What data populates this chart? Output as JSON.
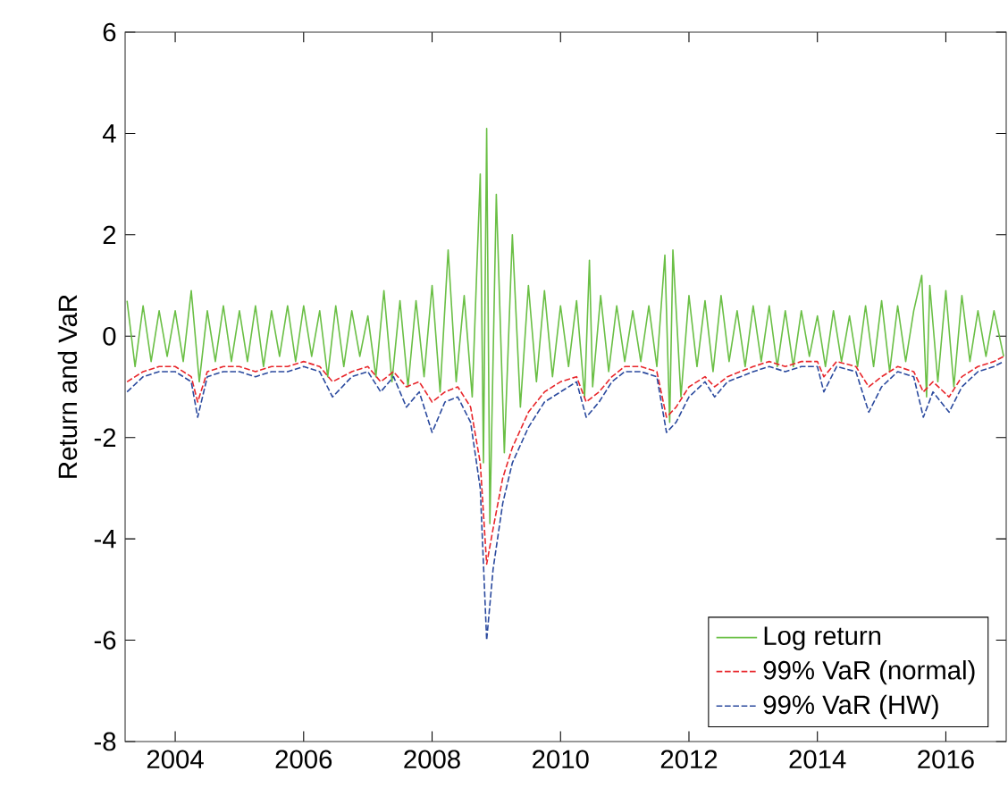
{
  "chart_data": {
    "type": "line",
    "ylabel": "Return and VaR",
    "xlim": [
      2003.22,
      2016.94
    ],
    "ylim": [
      -8,
      6
    ],
    "xticks": [
      2004,
      2006,
      2008,
      2010,
      2012,
      2014,
      2016
    ],
    "yticks": [
      -8,
      -6,
      -4,
      -2,
      0,
      2,
      4,
      6
    ],
    "legend": "bottom right",
    "grid": false,
    "series": [
      {
        "name": "Log return",
        "color": "#6abf45",
        "line_style": "solid",
        "x": [
          2003.25,
          2003.375,
          2003.5,
          2003.625,
          2003.75,
          2003.875,
          2004.0,
          2004.125,
          2004.25,
          2004.375,
          2004.5,
          2004.625,
          2004.75,
          2004.875,
          2005.0,
          2005.125,
          2005.25,
          2005.375,
          2005.5,
          2005.625,
          2005.75,
          2005.875,
          2006.0,
          2006.125,
          2006.25,
          2006.375,
          2006.5,
          2006.625,
          2006.75,
          2006.875,
          2007.0,
          2007.125,
          2007.25,
          2007.375,
          2007.5,
          2007.625,
          2007.75,
          2007.875,
          2008.0,
          2008.125,
          2008.25,
          2008.375,
          2008.5,
          2008.625,
          2008.75,
          2008.8,
          2008.85,
          2008.9,
          2009.0,
          2009.125,
          2009.25,
          2009.375,
          2009.5,
          2009.625,
          2009.75,
          2009.875,
          2010.0,
          2010.125,
          2010.25,
          2010.375,
          2010.45,
          2010.5,
          2010.625,
          2010.75,
          2010.875,
          2011.0,
          2011.125,
          2011.25,
          2011.375,
          2011.5,
          2011.625,
          2011.7,
          2011.75,
          2011.875,
          2012.0,
          2012.125,
          2012.25,
          2012.375,
          2012.5,
          2012.625,
          2012.75,
          2012.875,
          2013.0,
          2013.125,
          2013.25,
          2013.375,
          2013.5,
          2013.625,
          2013.75,
          2013.875,
          2014.0,
          2014.125,
          2014.25,
          2014.375,
          2014.5,
          2014.625,
          2014.75,
          2014.875,
          2015.0,
          2015.125,
          2015.25,
          2015.375,
          2015.5,
          2015.625,
          2015.7,
          2015.75,
          2015.875,
          2016.0,
          2016.125,
          2016.25,
          2016.375,
          2016.5,
          2016.625,
          2016.75,
          2016.9
        ],
        "values": [
          0.7,
          -0.6,
          0.6,
          -0.5,
          0.5,
          -0.4,
          0.5,
          -0.5,
          0.9,
          -0.9,
          0.5,
          -0.5,
          0.6,
          -0.5,
          0.5,
          -0.5,
          0.6,
          -0.6,
          0.5,
          -0.4,
          0.6,
          -0.5,
          0.6,
          -0.4,
          0.5,
          -0.8,
          0.6,
          -0.6,
          0.5,
          -0.4,
          0.4,
          -0.8,
          0.9,
          -0.9,
          0.7,
          -1.0,
          0.7,
          -0.8,
          1.0,
          -1.1,
          1.7,
          -0.9,
          0.8,
          -1.2,
          3.2,
          -2.5,
          4.1,
          -3.7,
          2.8,
          -2.3,
          2.0,
          -1.4,
          1.0,
          -0.9,
          0.9,
          -0.8,
          0.6,
          -0.6,
          0.7,
          -1.2,
          1.5,
          -1.0,
          0.8,
          -0.7,
          0.6,
          -0.5,
          0.5,
          -0.5,
          0.6,
          -0.6,
          1.6,
          -1.7,
          1.7,
          -1.2,
          0.8,
          -0.6,
          0.7,
          -0.7,
          0.8,
          -0.5,
          0.5,
          -0.6,
          0.6,
          -0.5,
          0.6,
          -0.6,
          0.5,
          -0.6,
          0.5,
          -0.4,
          0.4,
          -0.6,
          0.5,
          -0.5,
          0.4,
          -0.6,
          0.6,
          -0.6,
          0.7,
          -0.7,
          0.6,
          -0.5,
          0.5,
          1.2,
          -1.2,
          1.0,
          -0.9,
          0.9,
          -1.0,
          0.8,
          -0.5,
          0.5,
          -0.4,
          0.5,
          -0.4
        ]
      },
      {
        "name": "99% VaR (normal)",
        "color": "#e8262b",
        "line_style": "dashed",
        "x": [
          2003.25,
          2003.5,
          2003.75,
          2004.0,
          2004.25,
          2004.35,
          2004.5,
          2004.75,
          2005.0,
          2005.25,
          2005.5,
          2005.75,
          2006.0,
          2006.25,
          2006.45,
          2006.75,
          2007.0,
          2007.2,
          2007.4,
          2007.6,
          2007.8,
          2008.0,
          2008.2,
          2008.4,
          2008.6,
          2008.75,
          2008.85,
          2008.95,
          2009.1,
          2009.25,
          2009.5,
          2009.75,
          2010.0,
          2010.25,
          2010.4,
          2010.6,
          2010.8,
          2011.0,
          2011.25,
          2011.5,
          2011.65,
          2011.8,
          2012.0,
          2012.25,
          2012.4,
          2012.6,
          2012.8,
          2013.0,
          2013.25,
          2013.5,
          2013.75,
          2014.0,
          2014.1,
          2014.3,
          2014.6,
          2014.8,
          2015.0,
          2015.25,
          2015.5,
          2015.65,
          2015.8,
          2016.05,
          2016.25,
          2016.5,
          2016.75,
          2016.9
        ],
        "values": [
          -0.9,
          -0.7,
          -0.6,
          -0.6,
          -0.8,
          -1.3,
          -0.7,
          -0.6,
          -0.6,
          -0.7,
          -0.6,
          -0.6,
          -0.5,
          -0.6,
          -0.9,
          -0.7,
          -0.6,
          -0.9,
          -0.7,
          -1.0,
          -0.9,
          -1.3,
          -1.1,
          -1.0,
          -1.4,
          -2.5,
          -4.5,
          -3.8,
          -2.8,
          -2.2,
          -1.5,
          -1.1,
          -0.9,
          -0.8,
          -1.3,
          -1.1,
          -0.8,
          -0.6,
          -0.6,
          -0.7,
          -1.6,
          -1.4,
          -1.0,
          -0.8,
          -1.0,
          -0.8,
          -0.7,
          -0.6,
          -0.5,
          -0.6,
          -0.5,
          -0.5,
          -0.8,
          -0.5,
          -0.6,
          -1.0,
          -0.8,
          -0.6,
          -0.7,
          -1.1,
          -0.9,
          -1.2,
          -0.8,
          -0.6,
          -0.5,
          -0.4
        ]
      },
      {
        "name": "99% VaR (HW)",
        "color": "#2b4a9e",
        "line_style": "dashed",
        "x": [
          2003.25,
          2003.5,
          2003.75,
          2004.0,
          2004.25,
          2004.35,
          2004.5,
          2004.75,
          2005.0,
          2005.25,
          2005.5,
          2005.75,
          2006.0,
          2006.25,
          2006.45,
          2006.75,
          2007.0,
          2007.2,
          2007.4,
          2007.6,
          2007.8,
          2008.0,
          2008.2,
          2008.4,
          2008.6,
          2008.75,
          2008.85,
          2008.95,
          2009.1,
          2009.25,
          2009.5,
          2009.75,
          2010.0,
          2010.25,
          2010.4,
          2010.6,
          2010.8,
          2011.0,
          2011.25,
          2011.5,
          2011.65,
          2011.8,
          2012.0,
          2012.25,
          2012.4,
          2012.6,
          2012.8,
          2013.0,
          2013.25,
          2013.5,
          2013.75,
          2014.0,
          2014.1,
          2014.3,
          2014.6,
          2014.8,
          2015.0,
          2015.25,
          2015.5,
          2015.65,
          2015.8,
          2016.05,
          2016.25,
          2016.5,
          2016.75,
          2016.9
        ],
        "values": [
          -1.1,
          -0.8,
          -0.7,
          -0.7,
          -0.9,
          -1.6,
          -0.8,
          -0.7,
          -0.7,
          -0.8,
          -0.7,
          -0.7,
          -0.6,
          -0.7,
          -1.2,
          -0.8,
          -0.7,
          -1.1,
          -0.8,
          -1.4,
          -1.1,
          -1.9,
          -1.3,
          -1.2,
          -1.7,
          -3.0,
          -6.0,
          -4.6,
          -3.3,
          -2.5,
          -1.8,
          -1.3,
          -1.1,
          -0.9,
          -1.6,
          -1.3,
          -0.9,
          -0.7,
          -0.7,
          -0.8,
          -1.9,
          -1.7,
          -1.2,
          -0.9,
          -1.2,
          -0.9,
          -0.8,
          -0.7,
          -0.6,
          -0.7,
          -0.6,
          -0.6,
          -1.1,
          -0.6,
          -0.7,
          -1.5,
          -1.0,
          -0.7,
          -0.8,
          -1.6,
          -1.1,
          -1.5,
          -1.0,
          -0.7,
          -0.6,
          -0.5
        ]
      }
    ]
  }
}
